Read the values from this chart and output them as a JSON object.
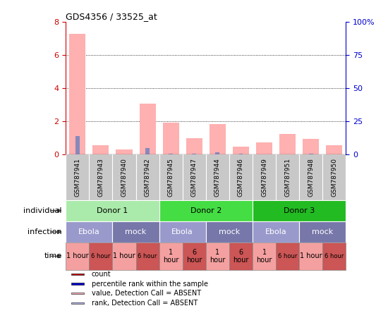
{
  "title": "GDS4356 / 33525_at",
  "samples": [
    "GSM787941",
    "GSM787943",
    "GSM787940",
    "GSM787942",
    "GSM787945",
    "GSM787947",
    "GSM787944",
    "GSM787946",
    "GSM787949",
    "GSM787951",
    "GSM787948",
    "GSM787950"
  ],
  "pink_bars": [
    7.3,
    0.55,
    0.28,
    3.05,
    1.92,
    0.98,
    1.82,
    0.48,
    0.72,
    1.22,
    0.95,
    0.55
  ],
  "blue_bars": [
    1.1,
    0.0,
    0.0,
    0.38,
    0.05,
    0.05,
    0.12,
    0.05,
    0.0,
    0.0,
    0.05,
    0.0
  ],
  "ylim_left": [
    0,
    8
  ],
  "ylim_right": [
    0,
    100
  ],
  "yticks_left": [
    0,
    2,
    4,
    6,
    8
  ],
  "yticks_right": [
    0,
    25,
    50,
    75,
    100
  ],
  "ytick_labels_right": [
    "0",
    "25",
    "50",
    "75",
    "100%"
  ],
  "donor_groups": [
    {
      "label": "Donor 1",
      "start": 0,
      "end": 4,
      "color": "#AAEAAA"
    },
    {
      "label": "Donor 2",
      "start": 4,
      "end": 8,
      "color": "#44DD44"
    },
    {
      "label": "Donor 3",
      "start": 8,
      "end": 12,
      "color": "#22BB22"
    }
  ],
  "infection_groups": [
    {
      "label": "Ebola",
      "start": 0,
      "end": 2,
      "color": "#9999CC"
    },
    {
      "label": "mock",
      "start": 2,
      "end": 4,
      "color": "#7777AA"
    },
    {
      "label": "Ebola",
      "start": 4,
      "end": 6,
      "color": "#9999CC"
    },
    {
      "label": "mock",
      "start": 6,
      "end": 8,
      "color": "#7777AA"
    },
    {
      "label": "Ebola",
      "start": 8,
      "end": 10,
      "color": "#9999CC"
    },
    {
      "label": "mock",
      "start": 10,
      "end": 12,
      "color": "#7777AA"
    }
  ],
  "time_groups": [
    {
      "label": "1 hour",
      "start": 0,
      "end": 1,
      "color": "#F5A0A0",
      "small": false
    },
    {
      "label": "6 hour",
      "start": 1,
      "end": 2,
      "color": "#CC5555",
      "small": true
    },
    {
      "label": "1 hour",
      "start": 2,
      "end": 3,
      "color": "#F5A0A0",
      "small": false
    },
    {
      "label": "6 hour",
      "start": 3,
      "end": 4,
      "color": "#CC5555",
      "small": true
    },
    {
      "label": "1\nhour",
      "start": 4,
      "end": 5,
      "color": "#F5A0A0",
      "small": false
    },
    {
      "label": "6\nhour",
      "start": 5,
      "end": 6,
      "color": "#CC5555",
      "small": false
    },
    {
      "label": "1\nhour",
      "start": 6,
      "end": 7,
      "color": "#F5A0A0",
      "small": false
    },
    {
      "label": "6\nhour",
      "start": 7,
      "end": 8,
      "color": "#CC5555",
      "small": false
    },
    {
      "label": "1\nhour",
      "start": 8,
      "end": 9,
      "color": "#F5A0A0",
      "small": false
    },
    {
      "label": "6 hour",
      "start": 9,
      "end": 10,
      "color": "#CC5555",
      "small": true
    },
    {
      "label": "1 hour",
      "start": 10,
      "end": 11,
      "color": "#F5A0A0",
      "small": false
    },
    {
      "label": "6 hour",
      "start": 11,
      "end": 12,
      "color": "#CC5555",
      "small": true
    }
  ],
  "row_labels": [
    "individual",
    "infection",
    "time"
  ],
  "legend_items": [
    {
      "color": "#CC0000",
      "label": "count"
    },
    {
      "color": "#0000CC",
      "label": "percentile rank within the sample"
    },
    {
      "color": "#FFB6C1",
      "label": "value, Detection Call = ABSENT"
    },
    {
      "color": "#BBBBEE",
      "label": "rank, Detection Call = ABSENT"
    }
  ],
  "bar_color_pink": "#FFB0B0",
  "bar_color_blue": "#8888BB",
  "bar_width": 0.7,
  "bg_color": "#FFFFFF",
  "axis_color_left": "#CC0000",
  "axis_color_right": "#0000CC",
  "sample_bg": "#C8C8C8",
  "sample_label_fontsize": 6.5,
  "grid_color": "black",
  "grid_lw": 0.6
}
